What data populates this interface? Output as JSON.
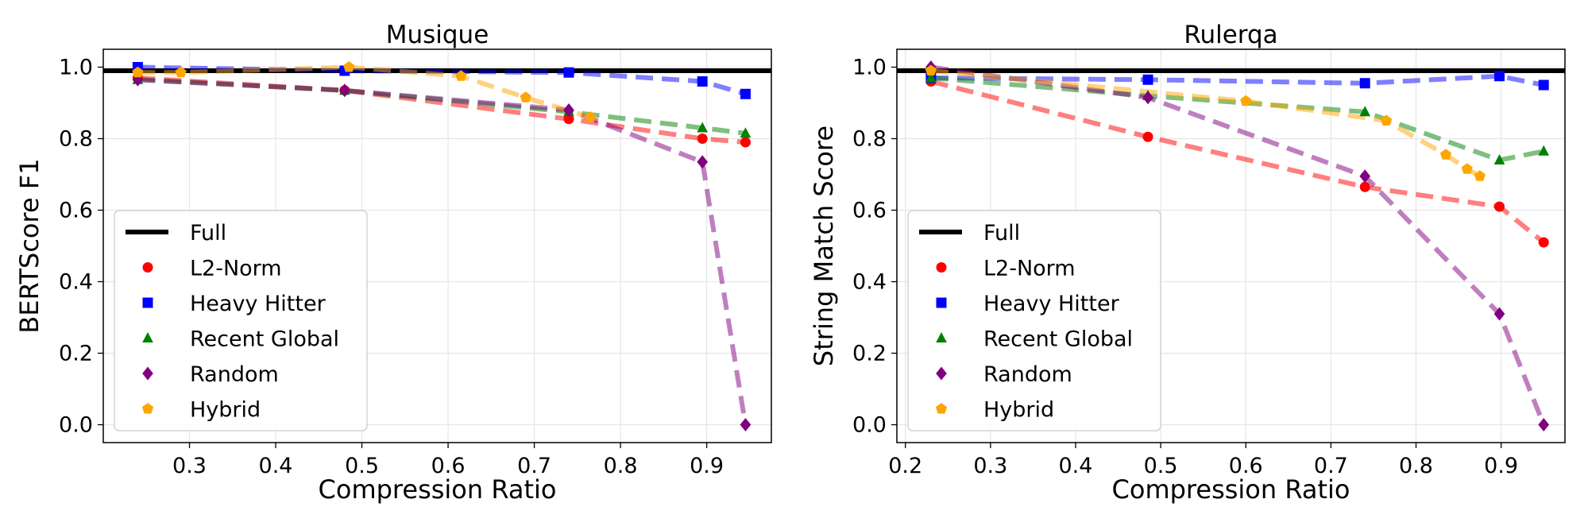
{
  "chart_data": [
    {
      "type": "line",
      "title": "Musique",
      "xlabel": "Compression Ratio",
      "ylabel": "BERTScore F1",
      "xlim": [
        0.2,
        0.975
      ],
      "ylim": [
        -0.05,
        1.05
      ],
      "xticks": [
        "0.3",
        "0.4",
        "0.5",
        "0.6",
        "0.7",
        "0.8",
        "0.9"
      ],
      "yticks": [
        "0.0",
        "0.2",
        "0.4",
        "0.6",
        "0.8",
        "1.0"
      ],
      "grid": true,
      "legend_position": "lower-left",
      "full_line": {
        "name": "Full",
        "y": 0.99,
        "color": "#000000"
      },
      "series": [
        {
          "name": "L2-Norm",
          "color": "#ff0000",
          "marker": "circle",
          "x": [
            0.24,
            0.48,
            0.74,
            0.895,
            0.945
          ],
          "y": [
            0.97,
            0.935,
            0.855,
            0.8,
            0.79
          ]
        },
        {
          "name": "Heavy Hitter",
          "color": "#0000ff",
          "marker": "square",
          "x": [
            0.24,
            0.48,
            0.74,
            0.895,
            0.945
          ],
          "y": [
            1.0,
            0.99,
            0.985,
            0.96,
            0.925
          ]
        },
        {
          "name": "Recent Global",
          "color": "#008000",
          "marker": "triangle",
          "x": [
            0.24,
            0.48,
            0.74,
            0.895,
            0.945
          ],
          "y": [
            0.965,
            0.935,
            0.875,
            0.83,
            0.815
          ]
        },
        {
          "name": "Random",
          "color": "#800080",
          "marker": "diamond",
          "x": [
            0.24,
            0.48,
            0.74,
            0.895,
            0.945
          ],
          "y": [
            0.965,
            0.935,
            0.88,
            0.735,
            0.0
          ]
        },
        {
          "name": "Hybrid",
          "color": "#ffa500",
          "marker": "pentagon",
          "x": [
            0.24,
            0.29,
            0.485,
            0.615,
            0.69,
            0.765
          ],
          "y": [
            0.985,
            0.985,
            1.0,
            0.975,
            0.915,
            0.86
          ]
        }
      ]
    },
    {
      "type": "line",
      "title": "Rulerqa",
      "xlabel": "Compression Ratio",
      "ylabel": "String Match Score",
      "xlim": [
        0.19,
        0.975
      ],
      "ylim": [
        -0.05,
        1.05
      ],
      "xticks": [
        "0.2",
        "0.3",
        "0.4",
        "0.5",
        "0.6",
        "0.7",
        "0.8",
        "0.9"
      ],
      "yticks": [
        "0.0",
        "0.2",
        "0.4",
        "0.6",
        "0.8",
        "1.0"
      ],
      "grid": true,
      "legend_position": "lower-left",
      "full_line": {
        "name": "Full",
        "y": 0.99,
        "color": "#000000"
      },
      "series": [
        {
          "name": "L2-Norm",
          "color": "#ff0000",
          "marker": "circle",
          "x": [
            0.23,
            0.485,
            0.74,
            0.898,
            0.95
          ],
          "y": [
            0.96,
            0.805,
            0.665,
            0.61,
            0.51
          ]
        },
        {
          "name": "Heavy Hitter",
          "color": "#0000ff",
          "marker": "square",
          "x": [
            0.23,
            0.485,
            0.74,
            0.898,
            0.95
          ],
          "y": [
            0.97,
            0.965,
            0.955,
            0.975,
            0.95
          ]
        },
        {
          "name": "Recent Global",
          "color": "#008000",
          "marker": "triangle",
          "x": [
            0.23,
            0.485,
            0.74,
            0.898,
            0.95
          ],
          "y": [
            0.97,
            0.92,
            0.875,
            0.74,
            0.765
          ]
        },
        {
          "name": "Random",
          "color": "#800080",
          "marker": "diamond",
          "x": [
            0.23,
            0.485,
            0.74,
            0.898,
            0.95
          ],
          "y": [
            1.0,
            0.915,
            0.695,
            0.31,
            0.0
          ]
        },
        {
          "name": "Hybrid",
          "color": "#ffa500",
          "marker": "pentagon",
          "x": [
            0.23,
            0.6,
            0.765,
            0.835,
            0.86,
            0.875
          ],
          "y": [
            0.99,
            0.905,
            0.85,
            0.755,
            0.715,
            0.695
          ]
        }
      ]
    }
  ]
}
